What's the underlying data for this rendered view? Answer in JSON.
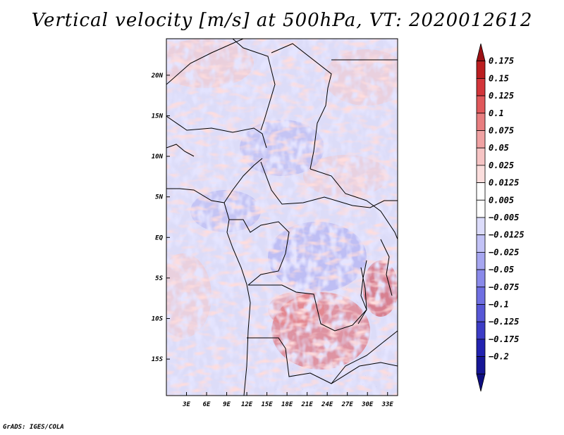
{
  "title": "Vertical velocity [m/s] at 500hPa, VT: 2020012612",
  "footer": "GrADS: IGES/COLA",
  "map": {
    "variable": "Vertical velocity",
    "units": "m/s",
    "level": "500hPa",
    "valid_time": "2020012612",
    "lon_range": [
      0,
      34.5
    ],
    "lat_range": [
      -19.5,
      24.5
    ],
    "x_ticks": [
      {
        "value": 3,
        "label": "3E"
      },
      {
        "value": 6,
        "label": "6E"
      },
      {
        "value": 9,
        "label": "9E"
      },
      {
        "value": 12,
        "label": "12E"
      },
      {
        "value": 15,
        "label": "15E"
      },
      {
        "value": 18,
        "label": "18E"
      },
      {
        "value": 21,
        "label": "21E"
      },
      {
        "value": 24,
        "label": "24E"
      },
      {
        "value": 27,
        "label": "27E"
      },
      {
        "value": 30,
        "label": "30E"
      },
      {
        "value": 33,
        "label": "33E"
      }
    ],
    "y_ticks": [
      {
        "value": 20,
        "label": "20N"
      },
      {
        "value": 15,
        "label": "15N"
      },
      {
        "value": 10,
        "label": "10N"
      },
      {
        "value": 5,
        "label": "5N"
      },
      {
        "value": 0,
        "label": "EQ"
      },
      {
        "value": -5,
        "label": "5S"
      },
      {
        "value": -10,
        "label": "10S"
      },
      {
        "value": -15,
        "label": "15S"
      }
    ]
  },
  "colorbar": {
    "colors": [
      "#9b1014",
      "#bb1e20",
      "#d3353a",
      "#e0585b",
      "#e87e80",
      "#f0a2a3",
      "#f6c4c4",
      "#fbdedd",
      "#ffffff",
      "#ffffff",
      "#dcdcfa",
      "#c2c2f6",
      "#a6a6f0",
      "#8a8aea",
      "#6f6fe2",
      "#5757d6",
      "#3c3cc6",
      "#2222b0",
      "#161696",
      "#0e0e80"
    ],
    "labels": [
      "0.175",
      "0.15",
      "0.125",
      "0.1",
      "0.075",
      "0.05",
      "0.025",
      "0.0125",
      "0.005",
      "−0.005",
      "−0.0125",
      "−0.025",
      "−0.05",
      "−0.075",
      "−0.1",
      "−0.125",
      "−0.175",
      "−0.2"
    ]
  }
}
